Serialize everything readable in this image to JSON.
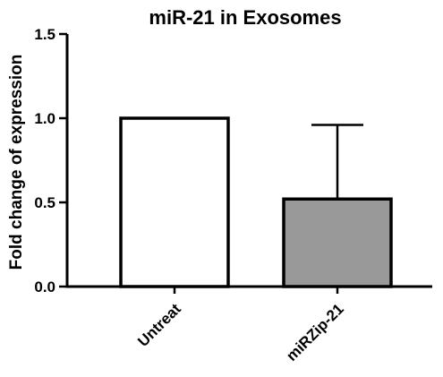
{
  "chart_data": {
    "type": "bar",
    "title": "miR-21 in Exosomes",
    "xlabel": "",
    "ylabel": "Fold change of expression",
    "categories": [
      "Untreat",
      "miRZip-21"
    ],
    "values": [
      1.0,
      0.52
    ],
    "error_upper": [
      null,
      0.96
    ],
    "ylim": [
      0,
      1.5
    ],
    "yticks": [
      "0.0",
      "0.5",
      "1.0",
      "1.5"
    ],
    "bar_colors": [
      "#ffffff",
      "#999999"
    ],
    "bar_edge_color": "#000000",
    "grid": false,
    "legend": "none"
  }
}
